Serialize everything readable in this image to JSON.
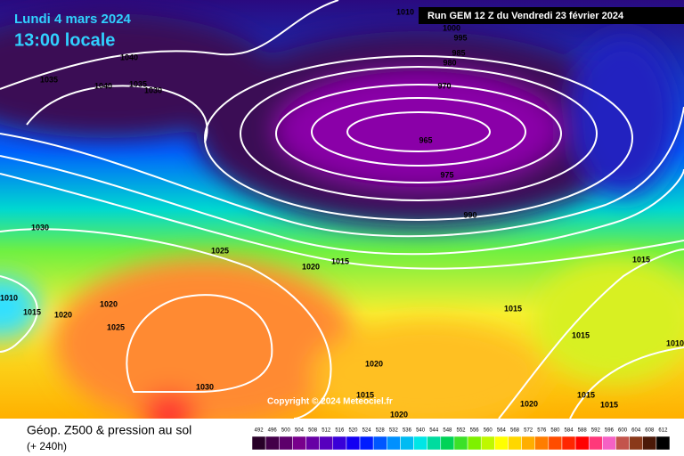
{
  "header": {
    "date": "Lundi 4 mars 2024",
    "time": "13:00 locale"
  },
  "run_label": "Run GEM 12 Z du Vendredi 23 février 2024",
  "copyright": "Copyright © 2024 Meteociel.fr",
  "footer": {
    "title": "Géop. Z500 & pression au sol",
    "lead": "(+ 240h)"
  },
  "isobar_labels": [
    1035,
    1040,
    1040,
    1035,
    1030,
    1010,
    1000,
    995,
    985,
    980,
    970,
    965,
    975,
    990,
    1030,
    1025,
    1020,
    1015,
    1015,
    1010,
    1015,
    1020,
    1020,
    1025,
    1015,
    1015,
    1020,
    1030,
    1015,
    1015,
    1020,
    1015,
    1020,
    1010
  ],
  "legend_labels": [
    492,
    496,
    500,
    504,
    508,
    512,
    516,
    520,
    524,
    528,
    532,
    536,
    540,
    544,
    548,
    552,
    556,
    560,
    564,
    568,
    572,
    576,
    580,
    584,
    588,
    592,
    596,
    600,
    604,
    608,
    612
  ]
}
